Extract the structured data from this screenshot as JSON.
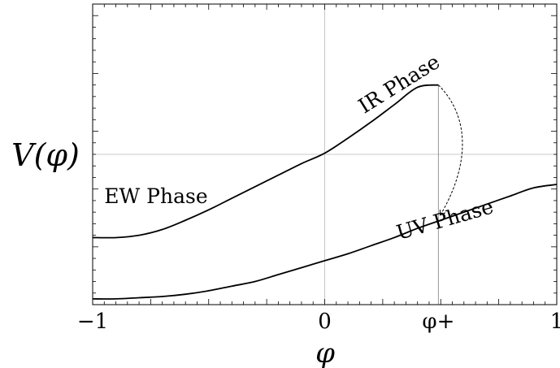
{
  "chart_data": {
    "type": "line",
    "xlabel": "φ",
    "ylabel": "V(φ)",
    "xlim": [
      -1,
      1
    ],
    "ylim": [
      -1.3,
      1.3
    ],
    "x_ticks": [
      {
        "value": -1,
        "label": "−1"
      },
      {
        "value": 0,
        "label": "0"
      },
      {
        "value": 0.49,
        "label": "φ+"
      },
      {
        "value": 1,
        "label": "1"
      }
    ],
    "reference_lines": {
      "x": 0,
      "y": 0
    },
    "marker_line": {
      "x": 0.49,
      "label": "φ+"
    },
    "grid": false,
    "series": [
      {
        "name": "IR Phase",
        "x": [
          -1,
          -0.9,
          -0.8,
          -0.7,
          -0.6,
          -0.5,
          -0.4,
          -0.3,
          -0.2,
          -0.1,
          0,
          0.1,
          0.2,
          0.3,
          0.4,
          0.49
        ],
        "y": [
          -0.72,
          -0.72,
          -0.7,
          -0.65,
          -0.57,
          -0.48,
          -0.38,
          -0.28,
          -0.18,
          -0.08,
          0.01,
          0.14,
          0.28,
          0.43,
          0.58,
          0.6
        ]
      },
      {
        "name": "UV Phase",
        "x": [
          -1,
          -0.9,
          -0.8,
          -0.7,
          -0.6,
          -0.5,
          -0.4,
          -0.3,
          -0.2,
          -0.1,
          0,
          0.1,
          0.2,
          0.3,
          0.4,
          0.5,
          0.6,
          0.7,
          0.8,
          0.9,
          1
        ],
        "y": [
          -1.25,
          -1.25,
          -1.24,
          -1.23,
          -1.21,
          -1.18,
          -1.14,
          -1.1,
          -1.04,
          -0.98,
          -0.92,
          -0.86,
          -0.79,
          -0.72,
          -0.64,
          -0.57,
          -0.5,
          -0.43,
          -0.36,
          -0.29,
          -0.26
        ]
      }
    ],
    "annotations": [
      {
        "text": "EW Phase",
        "x": -0.95,
        "y": -0.42,
        "rotate": 0
      },
      {
        "text": "IR Phase",
        "x": 0.17,
        "y": 0.35,
        "rotate": -32
      },
      {
        "text": "UV Phase",
        "x": 0.32,
        "y": -0.74,
        "rotate": -16
      }
    ],
    "transition_arrow": {
      "from": [
        0.49,
        0.6
      ],
      "to": [
        0.5,
        -0.52
      ]
    }
  }
}
